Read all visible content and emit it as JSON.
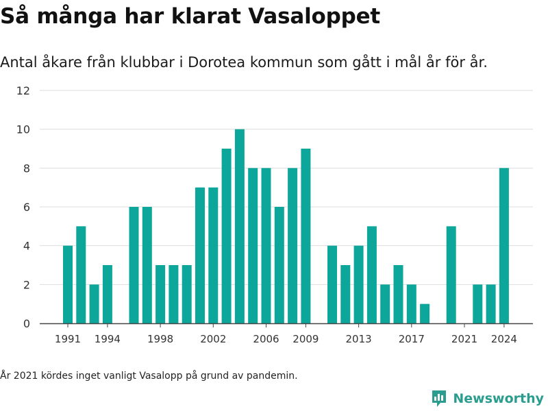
{
  "header": {
    "title": "Så många har klarat Vasaloppet",
    "subtitle": "Antal åkare från klubbar i Dorotea kommun som gått i mål år för år."
  },
  "footnote": "År 2021 kördes inget vanligt Vasalopp på grund av pandemin.",
  "brand": {
    "name": "Newsworthy",
    "icon": "newsworthy-logo-icon",
    "color": "#2a9d8f"
  },
  "chart_data": {
    "type": "bar",
    "bar_color": "#0da69a",
    "x": [
      1991,
      1992,
      1993,
      1994,
      1995,
      1996,
      1997,
      1998,
      1999,
      2000,
      2001,
      2002,
      2003,
      2004,
      2005,
      2006,
      2007,
      2008,
      2009,
      2010,
      2011,
      2012,
      2013,
      2014,
      2015,
      2016,
      2017,
      2018,
      2019,
      2020,
      2021,
      2022,
      2023,
      2024
    ],
    "values": [
      4,
      5,
      2,
      3,
      0,
      6,
      6,
      3,
      3,
      3,
      7,
      7,
      9,
      10,
      8,
      8,
      6,
      8,
      9,
      0,
      4,
      3,
      4,
      5,
      2,
      3,
      2,
      1,
      0,
      5,
      0,
      2,
      2,
      8
    ],
    "xticks": [
      "1991",
      "1994",
      "1998",
      "2002",
      "2006",
      "2009",
      "2013",
      "2017",
      "2021",
      "2024"
    ],
    "yticks": [
      "0",
      "2",
      "4",
      "6",
      "8",
      "10",
      "12"
    ],
    "ylim": [
      0,
      12
    ],
    "xlabel": "",
    "ylabel": "",
    "grid": true,
    "legend": "none"
  }
}
